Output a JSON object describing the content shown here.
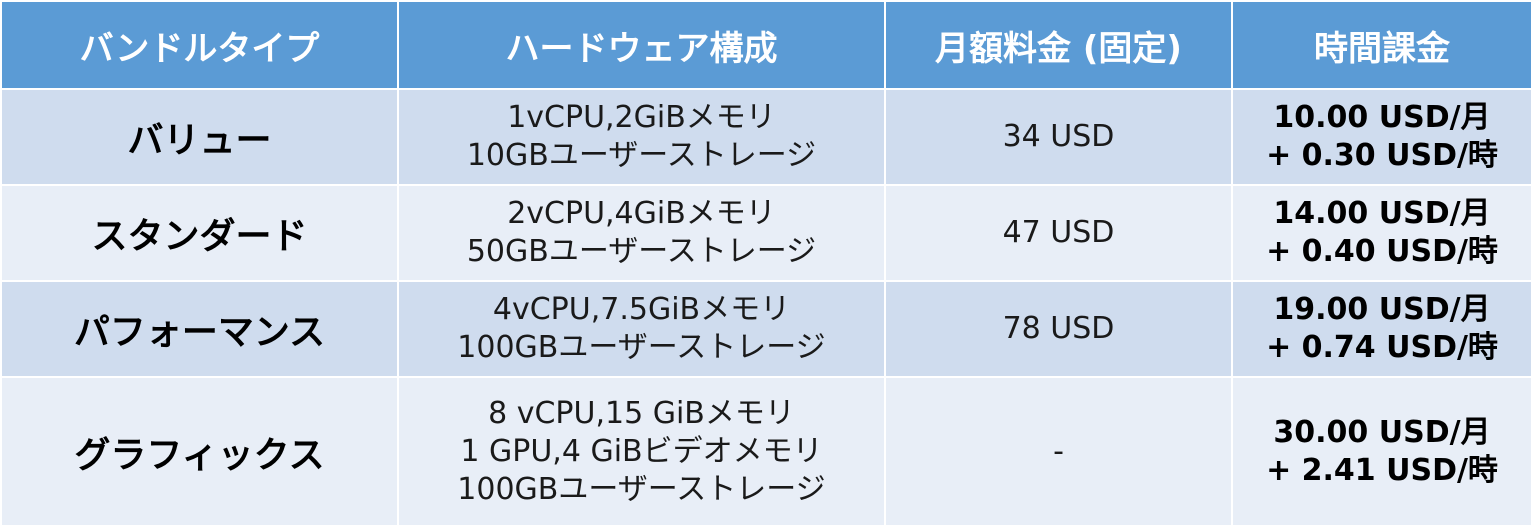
{
  "table": {
    "headers": [
      "バンドルタイプ",
      "ハードウェア構成",
      "月額料金 (固定)",
      "時間課金"
    ],
    "rows": [
      {
        "type": "バリュー",
        "hardware": [
          "1vCPU,2GiBメモリ",
          "10GBユーザーストレージ"
        ],
        "monthly": "34 USD",
        "hourly": [
          "10.00 USD/月",
          "+ 0.30 USD/時"
        ]
      },
      {
        "type": "スタンダード",
        "hardware": [
          "2vCPU,4GiBメモリ",
          "50GBユーザーストレージ"
        ],
        "monthly": "47 USD",
        "hourly": [
          "14.00 USD/月",
          "+ 0.40 USD/時"
        ]
      },
      {
        "type": "パフォーマンス",
        "hardware": [
          "4vCPU,7.5GiBメモリ",
          "100GBユーザーストレージ"
        ],
        "monthly": "78 USD",
        "hourly": [
          "19.00 USD/月",
          "+ 0.74 USD/時"
        ]
      },
      {
        "type": "グラフィックス",
        "hardware": [
          "8 vCPU,15 GiBメモリ",
          "1 GPU,4 GiBビデオメモリ",
          "100GBユーザーストレージ"
        ],
        "monthly": "-",
        "hourly": [
          "30.00 USD/月",
          "+ 2.41 USD/時"
        ]
      }
    ]
  },
  "colors": {
    "header_bg": "#5b9bd5",
    "row_odd_bg": "#cfdcee",
    "row_even_bg": "#e8eef7"
  }
}
